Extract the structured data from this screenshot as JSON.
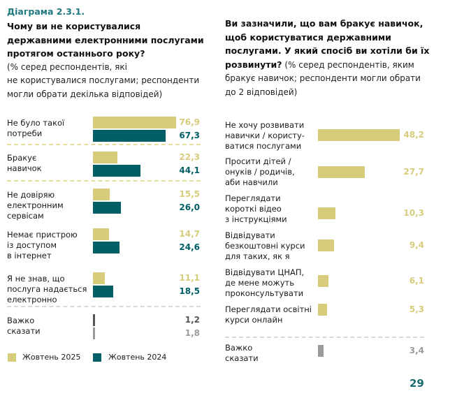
{
  "page_number": "29",
  "colors": {
    "oct2025": "#d7cc7c",
    "oct2024": "#005f66",
    "hard_to_say_dark": "#555555",
    "hard_to_say_light": "#9b9b9d",
    "title_accent": "#1f7a80",
    "dash_gold": "#e6de9c",
    "dash_grey": "#d9d9d9"
  },
  "chart_data": [
    {
      "type": "bar",
      "orientation": "horizontal",
      "figure_label": "Діаграма 2.3.1.",
      "title": "Чому ви не користувалися державними електронними послугами протягом останнього року?",
      "subtitle": "(% серед респондентів, які не користувалися послугами; респонденти могли обрати декілька відповідей)",
      "title_lines": [
        "Чому ви не користувалися",
        "державними електронними послугами",
        "протягом останнього року?"
      ],
      "subtitle_lines": [
        "(% серед респондентів, які",
        "не користувалися послугами; респонденти",
        "могли обрати декілька відповідей)"
      ],
      "categories": [
        [
          "Не було такої",
          "потреби"
        ],
        [
          "Бракує",
          "навичок"
        ],
        [
          "Не довіряю",
          "електронним",
          "сервісам"
        ],
        [
          "Немає пристрою",
          "із доступом",
          "в інтернет"
        ],
        [
          "Я не знав, що",
          "послуга надається",
          "електронно"
        ],
        [
          "Важко",
          "сказати"
        ]
      ],
      "series": [
        {
          "name": "Жовтень 2025",
          "values": [
            76.9,
            22.3,
            15.5,
            14.7,
            11.1,
            1.2
          ],
          "labels": [
            "76,9",
            "22,3",
            "15,5",
            "14,7",
            "11,1",
            "1,2"
          ]
        },
        {
          "name": "Жовтень 2024",
          "values": [
            67.3,
            44.1,
            26.0,
            24.6,
            18.5,
            1.8
          ],
          "labels": [
            "67,3",
            "44,1",
            "26,0",
            "24,6",
            "18,5",
            "1,8"
          ]
        }
      ],
      "legend": [
        {
          "label": "Жовтень 2025",
          "color": "#d7cc7c"
        },
        {
          "label": "Жовтень 2024",
          "color": "#005f66"
        }
      ],
      "legend_position": "bottom",
      "xlim": [
        0,
        100
      ],
      "grid": false
    },
    {
      "type": "bar",
      "orientation": "horizontal",
      "title": "Ви зазначили, що вам бракує навичок, щоб користуватися державними послугами. У який спосіб ви хотіли би їх розвинути?",
      "subtitle": "(% серед респондентів, яким бракує навичок; респонденти могли обрати до 2 відповідей)",
      "title_lines": [
        "Ви зазначили, що вам бракує навичок,",
        "щоб користуватися державними",
        "послугами. У який спосіб ви хотіли би їх"
      ],
      "title_last": "розвинути?",
      "subtitle_inline": " (% серед респондентів, яким",
      "subtitle_lines": [
        "бракує навичок; респонденти могли обрати",
        "до 2 відповідей)"
      ],
      "categories": [
        [
          "Не хочу розвивати",
          "навички / користу-",
          "ватися послугами"
        ],
        [
          "Просити дітей /",
          "онуків / родичів,",
          "аби навчили"
        ],
        [
          "Переглядати",
          "короткі відео",
          "з інструкціями"
        ],
        [
          "Відвідувати",
          "безкоштовні курси",
          "для таких, як я"
        ],
        [
          "Відвідувати ЦНАП,",
          "де мене можуть",
          "проконсультувати"
        ],
        [
          "Переглядати освітні",
          "курси онлайн"
        ],
        [
          "Важко",
          "сказати"
        ]
      ],
      "series": [
        {
          "name": "Жовтень 2025",
          "values": [
            48.2,
            27.7,
            10.3,
            9.4,
            6.1,
            5.3,
            3.4
          ],
          "labels": [
            "48,2",
            "27,7",
            "10,3",
            "9,4",
            "6,1",
            "5,3",
            "3,4"
          ]
        }
      ],
      "xlim": [
        0,
        100
      ],
      "grid": false
    }
  ]
}
